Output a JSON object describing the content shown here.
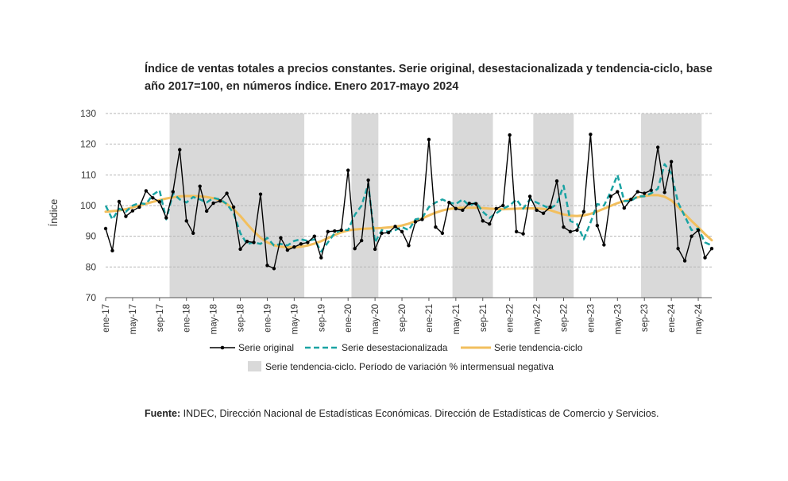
{
  "chart_data": {
    "type": "line",
    "title": "Índice de ventas totales a precios constantes. Serie original, desestacionalizada y tendencia-ciclo, base año 2017=100, en números índice. Enero 2017-mayo 2024",
    "ylabel": "Índice",
    "xlabel": "",
    "ylim": [
      70,
      130
    ],
    "yticks": [
      "70",
      "80",
      "90",
      "100",
      "110",
      "120",
      "130"
    ],
    "xtick_labels": [
      "ene-17",
      "may-17",
      "sep-17",
      "ene-18",
      "may-18",
      "sep-18",
      "ene-19",
      "may-19",
      "sep-19",
      "ene-20",
      "may-20",
      "sep-20",
      "ene-21",
      "may-21",
      "sep-21",
      "ene-22",
      "may-22",
      "sep-22",
      "ene-23",
      "may-23",
      "sep-23",
      "ene-24",
      "may-24"
    ],
    "grid": true,
    "legend_position": "bottom",
    "x_start": "ene-17",
    "x_end": "may-24",
    "shaded_periods": [
      {
        "start": "nov-17",
        "end": "jun-19"
      },
      {
        "start": "feb-20",
        "end": "may-20"
      },
      {
        "start": "may-21",
        "end": "oct-21"
      },
      {
        "start": "may-22",
        "end": "oct-22"
      },
      {
        "start": "sep-23",
        "end": "may-24"
      }
    ],
    "series": [
      {
        "name": "Serie original",
        "color": "#000000",
        "style": "solid-markers",
        "values": [
          92.5,
          85.3,
          101.3,
          96.5,
          98.3,
          99.5,
          104.8,
          102.5,
          101.2,
          96.0,
          104.5,
          118.2,
          95.0,
          91.0,
          106.3,
          98.2,
          100.8,
          101.5,
          104.0,
          99.5,
          85.8,
          88.3,
          88.0,
          103.7,
          80.5,
          79.5,
          89.5,
          85.5,
          86.5,
          87.5,
          88.0,
          90.0,
          83.0,
          91.5,
          91.7,
          92.0,
          111.5,
          86.0,
          88.6,
          108.3,
          85.8,
          91.0,
          91.2,
          93.2,
          91.5,
          87.0,
          94.7,
          95.5,
          121.5,
          93.0,
          91.0,
          101.0,
          99.0,
          98.5,
          100.7,
          100.6,
          95.0,
          94.0,
          99.0,
          100.0,
          123.0,
          91.5,
          90.8,
          103.0,
          98.5,
          97.5,
          99.5,
          108.0,
          93.0,
          91.5,
          92.0,
          98.0,
          123.2,
          93.5,
          87.2,
          103.0,
          104.5,
          99.2,
          102.0,
          104.5,
          104.0,
          105.0,
          119.0,
          104.3,
          114.3,
          86.0,
          82.0,
          90.0,
          92.0,
          83.0,
          86.0
        ]
      },
      {
        "name": "Serie desestacionalizada",
        "color": "#1aa3a3",
        "style": "dashed",
        "values": [
          100.0,
          95.5,
          99.0,
          98.0,
          100.0,
          100.8,
          100.5,
          103.5,
          105.0,
          95.5,
          104.0,
          102.0,
          101.0,
          102.8,
          102.0,
          101.0,
          102.5,
          102.0,
          100.5,
          97.5,
          91.0,
          87.5,
          88.0,
          87.5,
          89.5,
          87.0,
          87.5,
          87.0,
          88.5,
          89.0,
          88.5,
          89.0,
          85.0,
          88.0,
          91.0,
          92.0,
          92.0,
          97.0,
          100.0,
          107.0,
          88.0,
          92.0,
          91.5,
          92.0,
          93.0,
          92.0,
          95.5,
          96.0,
          99.5,
          101.0,
          102.0,
          101.0,
          100.5,
          102.0,
          100.0,
          101.0,
          98.0,
          96.0,
          97.5,
          99.0,
          100.0,
          102.0,
          99.0,
          102.0,
          101.0,
          100.0,
          99.0,
          100.5,
          106.5,
          95.0,
          94.0,
          89.0,
          94.5,
          100.5,
          100.0,
          104.5,
          110.0,
          101.5,
          101.5,
          103.0,
          103.0,
          104.0,
          105.5,
          113.5,
          110.5,
          101.0,
          96.5,
          92.0,
          92.5,
          88.0,
          87.0
        ]
      },
      {
        "name": "Serie tendencia-ciclo",
        "color": "#f2bf5e",
        "style": "solid",
        "values": [
          98.0,
          98.2,
          98.4,
          98.8,
          99.4,
          100.0,
          100.6,
          101.2,
          101.8,
          102.3,
          102.7,
          103.0,
          103.1,
          103.1,
          103.0,
          102.8,
          102.4,
          101.7,
          100.5,
          98.8,
          96.6,
          94.0,
          91.6,
          89.5,
          88.0,
          87.1,
          86.6,
          86.4,
          86.4,
          86.6,
          87.0,
          87.6,
          88.4,
          89.4,
          90.4,
          91.3,
          91.9,
          92.2,
          92.4,
          92.5,
          92.6,
          92.7,
          92.9,
          93.1,
          93.5,
          94.1,
          94.9,
          95.8,
          96.8,
          97.7,
          98.4,
          98.9,
          99.2,
          99.3,
          99.3,
          99.3,
          99.2,
          99.0,
          98.9,
          98.8,
          98.9,
          99.0,
          99.1,
          99.1,
          99.1,
          98.9,
          98.5,
          97.8,
          97.1,
          96.7,
          96.6,
          96.8,
          97.3,
          98.1,
          99.0,
          99.9,
          100.8,
          101.5,
          102.1,
          102.7,
          103.1,
          103.4,
          103.4,
          102.9,
          101.7,
          99.6,
          97.2,
          95.0,
          92.9,
          90.7,
          88.7
        ]
      }
    ],
    "legend": {
      "original": "Serie original",
      "sa": "Serie desestacionalizada",
      "trend": "Serie tendencia-ciclo",
      "shade": "Serie tendencia-ciclo. Período de variación % intermensual negativa"
    }
  },
  "source": {
    "label": "Fuente:",
    "text": " INDEC, Dirección Nacional de Estadísticas Económicas. Dirección de Estadísticas de Comercio y Servicios."
  }
}
